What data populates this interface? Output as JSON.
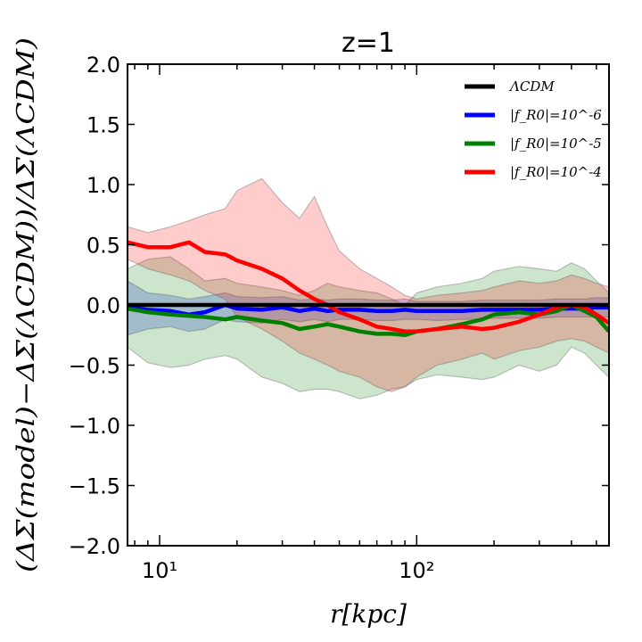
{
  "chart_data": {
    "type": "line",
    "title": "z=1",
    "xlabel": "r[kpc]",
    "ylabel": "(ΔΣ(model)−ΔΣ(ΛCDM))/ΔΣ(ΛCDM)",
    "xscale": "log",
    "xlim": [
      7.5,
      560
    ],
    "ylim": [
      -2.0,
      2.0
    ],
    "xticks": [
      {
        "value": 10,
        "label": "10¹"
      },
      {
        "value": 100,
        "label": "10²"
      }
    ],
    "yticks": [
      {
        "value": 2.0,
        "label": "2.0"
      },
      {
        "value": 1.5,
        "label": "1.5"
      },
      {
        "value": 1.0,
        "label": "1.0"
      },
      {
        "value": 0.5,
        "label": "0.5"
      },
      {
        "value": 0.0,
        "label": "0.0"
      },
      {
        "value": -0.5,
        "label": "−0.5"
      },
      {
        "value": -1.0,
        "label": "−1.0"
      },
      {
        "value": -1.5,
        "label": "−1.5"
      },
      {
        "value": -2.0,
        "label": "−2.0"
      }
    ],
    "legend_position": "top-right",
    "x": [
      7.5,
      9,
      11,
      13,
      15,
      18,
      20,
      25,
      30,
      35,
      40,
      45,
      50,
      60,
      70,
      80,
      90,
      100,
      120,
      150,
      180,
      200,
      250,
      300,
      350,
      400,
      450,
      500,
      560
    ],
    "series": [
      {
        "name": "ΛCDM",
        "color": "#000000",
        "values": [
          0,
          0,
          0,
          0,
          0,
          0,
          0,
          0,
          0,
          0,
          0,
          0,
          0,
          0,
          0,
          0,
          0,
          0,
          0,
          0,
          0,
          0,
          0,
          0,
          0,
          0,
          0,
          0,
          0
        ]
      },
      {
        "name": "|f_R0|=10^-6",
        "color": "#0000ff",
        "values": [
          -0.02,
          -0.04,
          -0.05,
          -0.08,
          -0.06,
          0.0,
          -0.03,
          -0.04,
          -0.02,
          -0.05,
          -0.03,
          -0.05,
          -0.04,
          -0.04,
          -0.05,
          -0.05,
          -0.04,
          -0.05,
          -0.05,
          -0.05,
          -0.04,
          -0.04,
          -0.04,
          -0.04,
          -0.03,
          -0.03,
          -0.03,
          -0.02,
          -0.02
        ],
        "band_lower": [
          -0.25,
          -0.2,
          -0.18,
          -0.22,
          -0.2,
          -0.12,
          -0.14,
          -0.15,
          -0.12,
          -0.14,
          -0.12,
          -0.14,
          -0.12,
          -0.12,
          -0.13,
          -0.13,
          -0.12,
          -0.12,
          -0.13,
          -0.12,
          -0.12,
          -0.11,
          -0.11,
          -0.11,
          -0.1,
          -0.1,
          -0.1,
          -0.1,
          -0.1
        ],
        "band_upper": [
          0.2,
          0.1,
          0.08,
          0.05,
          0.07,
          0.1,
          0.07,
          0.06,
          0.07,
          0.04,
          0.05,
          0.04,
          0.05,
          0.05,
          0.04,
          0.04,
          0.05,
          0.03,
          0.03,
          0.03,
          0.04,
          0.04,
          0.04,
          0.04,
          0.05,
          0.05,
          0.05,
          0.06,
          0.06
        ]
      },
      {
        "name": "|f_R0|=10^-5",
        "color": "#007f00",
        "values": [
          -0.03,
          -0.06,
          -0.08,
          -0.09,
          -0.1,
          -0.12,
          -0.1,
          -0.13,
          -0.15,
          -0.2,
          -0.18,
          -0.16,
          -0.18,
          -0.22,
          -0.24,
          -0.24,
          -0.25,
          -0.22,
          -0.2,
          -0.16,
          -0.12,
          -0.08,
          -0.06,
          -0.08,
          -0.05,
          0.0,
          -0.05,
          -0.1,
          -0.22
        ],
        "band_lower": [
          -0.35,
          -0.48,
          -0.52,
          -0.5,
          -0.45,
          -0.42,
          -0.45,
          -0.6,
          -0.65,
          -0.72,
          -0.7,
          -0.7,
          -0.72,
          -0.78,
          -0.75,
          -0.7,
          -0.68,
          -0.62,
          -0.58,
          -0.6,
          -0.62,
          -0.6,
          -0.5,
          -0.55,
          -0.5,
          -0.35,
          -0.4,
          -0.5,
          -0.6
        ],
        "band_upper": [
          0.3,
          0.38,
          0.4,
          0.3,
          0.2,
          0.22,
          0.18,
          0.15,
          0.12,
          0.08,
          0.12,
          0.18,
          0.15,
          0.12,
          0.1,
          0.05,
          0.0,
          0.1,
          0.15,
          0.18,
          0.22,
          0.28,
          0.32,
          0.3,
          0.28,
          0.35,
          0.3,
          0.2,
          0.1
        ]
      },
      {
        "name": "|f_R0|=10^-4",
        "color": "#ff0000",
        "values": [
          0.52,
          0.48,
          0.48,
          0.52,
          0.44,
          0.42,
          0.37,
          0.3,
          0.22,
          0.12,
          0.05,
          0.0,
          -0.06,
          -0.12,
          -0.18,
          -0.2,
          -0.22,
          -0.22,
          -0.2,
          -0.18,
          -0.2,
          -0.19,
          -0.14,
          -0.08,
          -0.02,
          0.0,
          -0.02,
          -0.08,
          -0.15
        ],
        "band_lower": [
          0.38,
          0.3,
          0.25,
          0.2,
          0.12,
          0.05,
          -0.1,
          -0.2,
          -0.3,
          -0.4,
          -0.45,
          -0.5,
          -0.55,
          -0.6,
          -0.68,
          -0.72,
          -0.68,
          -0.6,
          -0.5,
          -0.45,
          -0.4,
          -0.45,
          -0.38,
          -0.35,
          -0.3,
          -0.28,
          -0.3,
          -0.35,
          -0.4
        ],
        "band_upper": [
          0.65,
          0.6,
          0.65,
          0.7,
          0.75,
          0.8,
          0.95,
          1.05,
          0.85,
          0.72,
          0.9,
          0.65,
          0.45,
          0.3,
          0.22,
          0.15,
          0.08,
          0.05,
          0.08,
          0.1,
          0.12,
          0.15,
          0.2,
          0.18,
          0.2,
          0.25,
          0.22,
          0.18,
          0.15
        ]
      }
    ]
  }
}
